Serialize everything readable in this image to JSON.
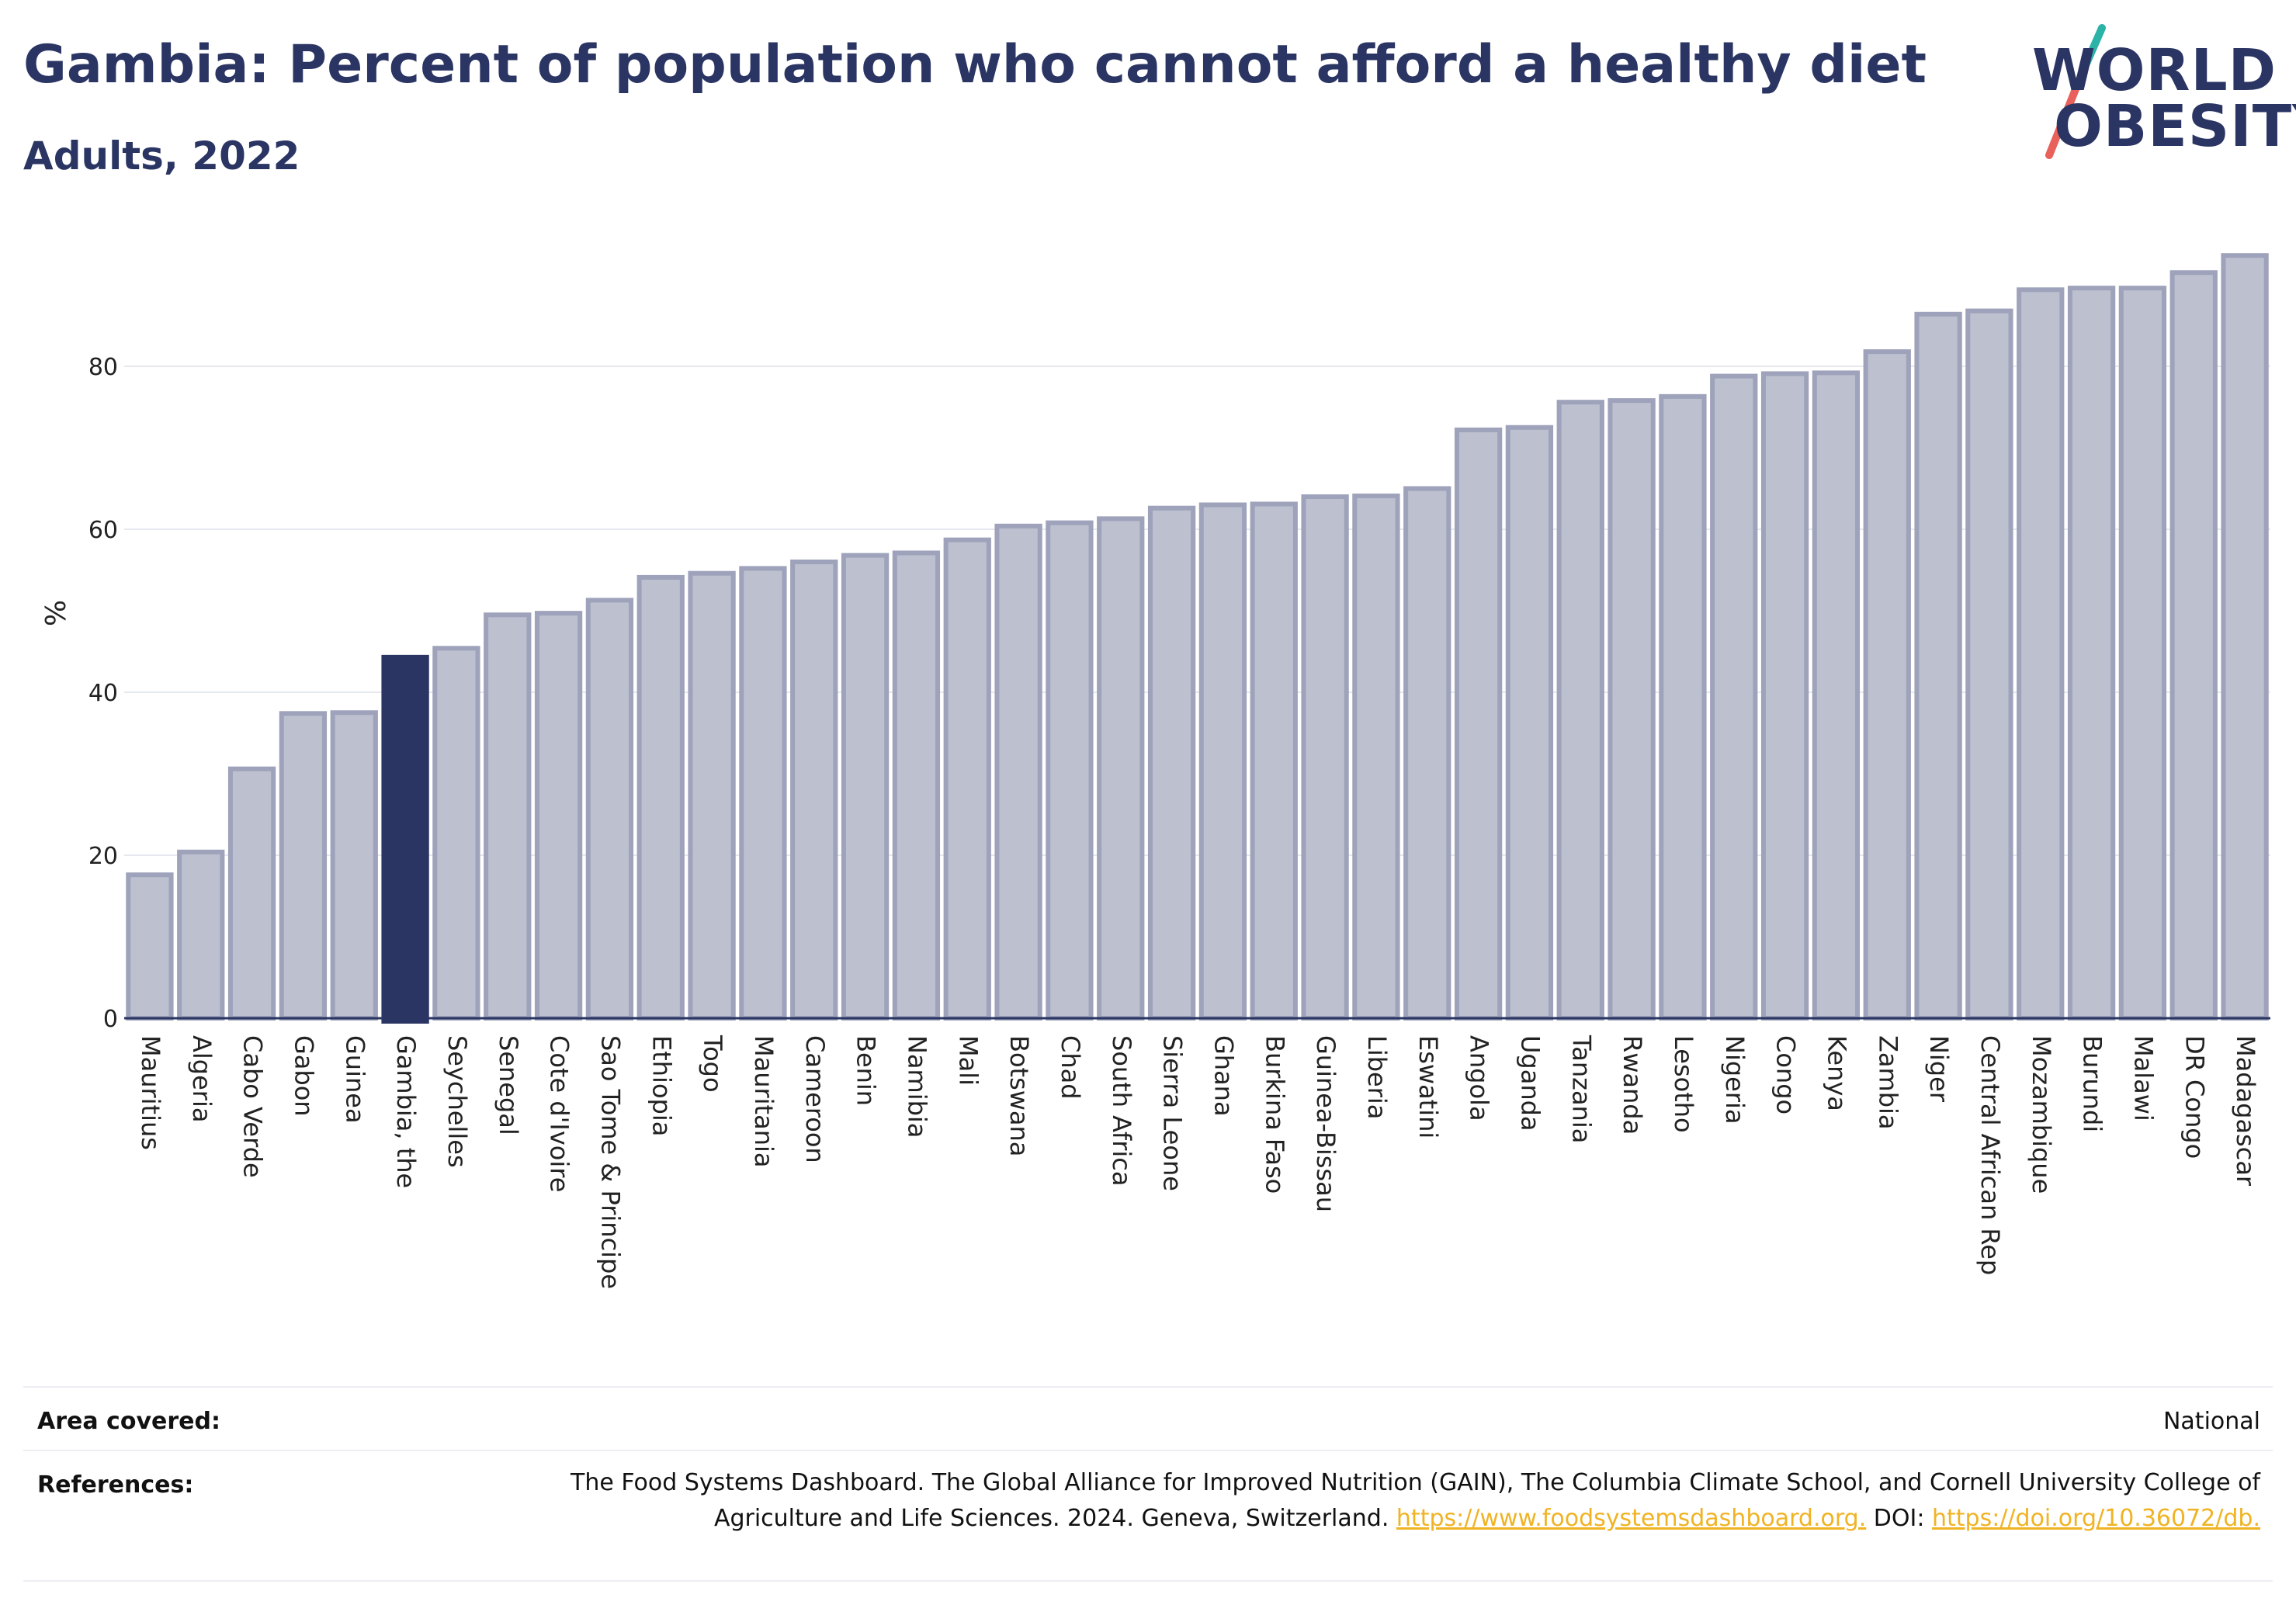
{
  "header": {
    "title": "Gambia: Percent of population who cannot afford a healthy diet",
    "subtitle": "Adults, 2022"
  },
  "logo": {
    "line1": "WORLD",
    "line2": "OBESITY",
    "accent_teal": "#2bb3a8",
    "accent_red": "#e8615a"
  },
  "colors": {
    "bar": "#bcc0cf",
    "bar_border": "#9ea2ba",
    "highlight": "#2b3563",
    "grid": "#e6e8ef",
    "axis": "#2b3563"
  },
  "chart_data": {
    "type": "bar",
    "ylabel": "%",
    "xlabel": "",
    "ylim": [
      0,
      95
    ],
    "yticks": [
      0,
      20,
      40,
      60,
      80
    ],
    "grid": true,
    "highlight_category": "Gambia, the",
    "categories": [
      "Mauritius",
      "Algeria",
      "Cabo Verde",
      "Gabon",
      "Guinea",
      "Gambia, the",
      "Seychelles",
      "Senegal",
      "Cote d'Ivoire",
      "Sao Tome & Principe",
      "Ethiopia",
      "Togo",
      "Mauritania",
      "Cameroon",
      "Benin",
      "Namibia",
      "Mali",
      "Botswana",
      "Chad",
      "South Africa",
      "Sierra Leone",
      "Ghana",
      "Burkina Faso",
      "Guinea-Bissau",
      "Liberia",
      "Eswatini",
      "Angola",
      "Uganda",
      "Tanzania",
      "Rwanda",
      "Lesotho",
      "Nigeria",
      "Congo",
      "Kenya",
      "Zambia",
      "Niger",
      "Central African Rep",
      "Mozambique",
      "Burundi",
      "Malawi",
      "DR Congo",
      "Madagascar"
    ],
    "values": [
      17.6,
      20.4,
      30.6,
      37.4,
      37.5,
      44.3,
      45.4,
      49.5,
      49.7,
      51.3,
      54.1,
      54.6,
      55.2,
      56.0,
      56.8,
      57.1,
      58.7,
      60.4,
      60.8,
      61.3,
      62.6,
      63.0,
      63.1,
      64.0,
      64.1,
      65.0,
      72.2,
      72.5,
      75.6,
      75.8,
      76.3,
      78.8,
      79.1,
      79.2,
      81.8,
      86.4,
      86.8,
      89.4,
      89.6,
      89.6,
      91.5,
      93.6
    ]
  },
  "footer": {
    "area_label": "Area covered:",
    "area_value": "National",
    "references_label": "References:",
    "references_text": "The Food Systems Dashboard. The Global Alliance for Improved Nutrition (GAIN), The Columbia Climate School, and Cornell University College of Agriculture and Life Sciences. 2024. Geneva, Switzerland.",
    "references_link1": "https://www.foodsystemsdashboard.org.",
    "references_doi_label": "DOI:",
    "references_link2": "https://doi.org/10.36072/db."
  }
}
